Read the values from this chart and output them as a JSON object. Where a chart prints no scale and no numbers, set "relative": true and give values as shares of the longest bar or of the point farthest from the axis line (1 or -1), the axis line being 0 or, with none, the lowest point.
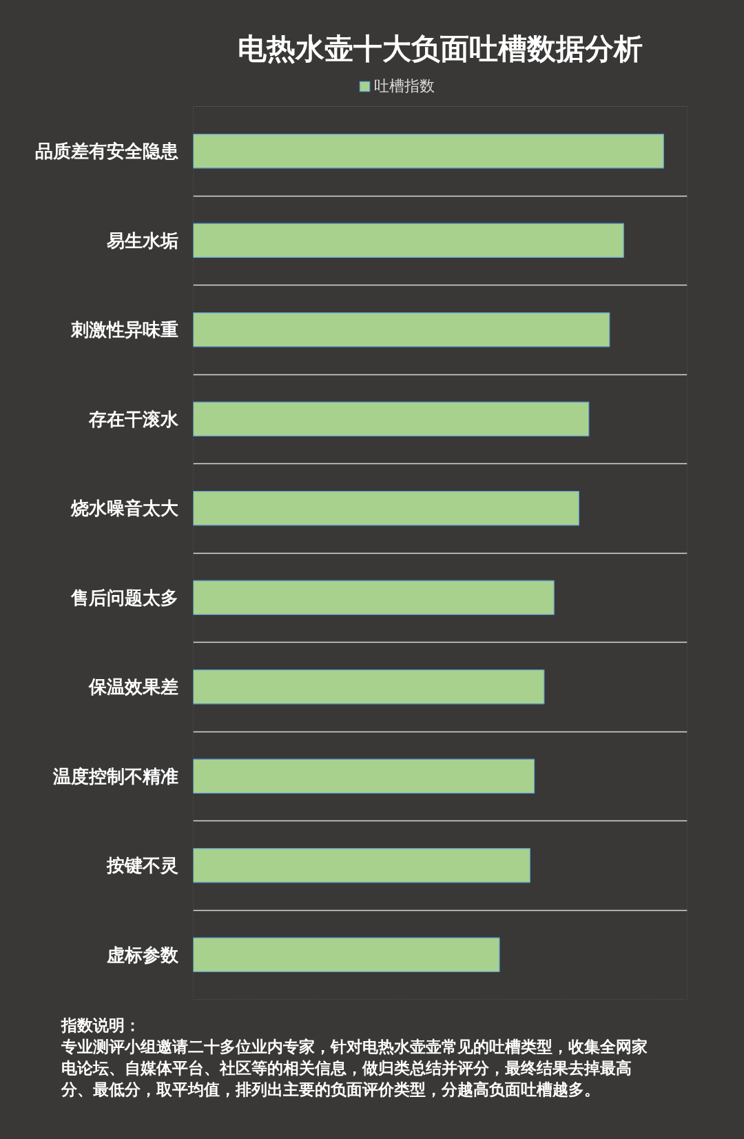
{
  "chart_data": {
    "type": "bar",
    "orientation": "horizontal",
    "relative": true,
    "title": "电热水壶十大负面吐槽数据分析",
    "categories": [
      "品质差有安全隐患",
      "易生水垢",
      "刺激性异味重",
      "存在干滚水",
      "烧水噪音太大",
      "售后问题太多",
      "保温效果差",
      "温度控制不精准",
      "按键不灵",
      "虚标参数"
    ],
    "series": [
      {
        "name": "吐槽指数",
        "color": "#a9d18e",
        "values": [
          1,
          0.915,
          0.885,
          0.841,
          0.82,
          0.767,
          0.746,
          0.725,
          0.716,
          0.651
        ]
      }
    ],
    "legend": "top",
    "grid": "y",
    "annotations": [
      "指数说明：",
      "专业测评小组邀请二十多位业内专家，针对电热水壶壶常见的吐槽类型，收集全网家电论坛、自媒体平台、社区等的相关信息，做归类总结并评分，最终结果去掉最高分、最低分，取平均值，排列出主要的负面评价类型，分越高负面吐槽越多。"
    ]
  }
}
